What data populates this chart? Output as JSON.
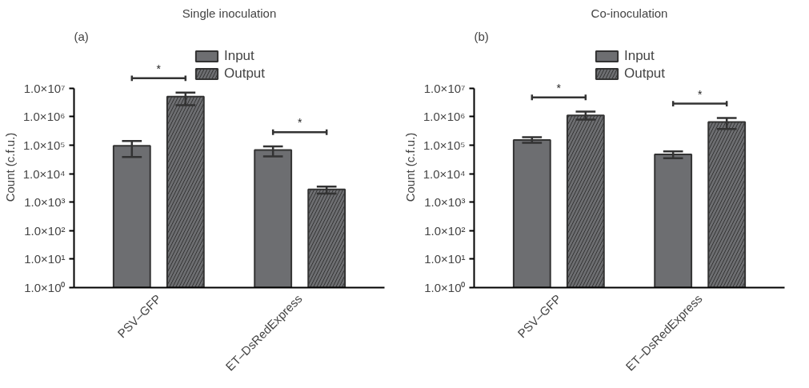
{
  "chart_data": [
    {
      "type": "bar",
      "title": "Single inoculation",
      "ylabel": "Count (c.f.u.)",
      "categories": [
        "PSV–GFP",
        "ET–DsRedExpress"
      ],
      "log": true,
      "legend": "top",
      "grid": false,
      "series": [
        {
          "name": "Input",
          "color": "#6d6e71",
          "values": [
            95000,
            67000
          ],
          "errors": [
            [
              38000,
              140000
            ],
            [
              40000,
              90000
            ]
          ]
        },
        {
          "name": "Output",
          "color": "#6d6e71",
          "values": [
            5000000,
            2800
          ],
          "errors": [
            [
              2500000,
              7000000
            ],
            [
              2000,
              3500
            ]
          ]
        }
      ],
      "ylim": [
        1,
        10000000
      ],
      "yticks": [
        {
          "value": 1,
          "label": "1.0×10⁰"
        },
        {
          "value": 10,
          "label": "1.0×10¹"
        },
        {
          "value": 100,
          "label": "1.0×10²"
        },
        {
          "value": 1000,
          "label": "1.0×10³"
        },
        {
          "value": 10000,
          "label": "1.0×10⁴"
        },
        {
          "value": 100000,
          "label": "1.0×10⁵"
        },
        {
          "value": 1000000,
          "label": "1.0×10⁶"
        },
        {
          "value": 10000000,
          "label": "1.0×10⁷"
        }
      ],
      "annotations": [
        "(a)",
        "*",
        "*"
      ]
    },
    {
      "type": "bar",
      "title": "Co-inoculation",
      "ylabel": "Count (c.f.u.)",
      "categories": [
        "PSV–GFP",
        "ET–DsRedExpress"
      ],
      "log": true,
      "legend": "top",
      "grid": false,
      "series": [
        {
          "name": "Input",
          "color": "#6d6e71",
          "values": [
            150000,
            47000
          ],
          "errors": [
            [
              120000,
              190000
            ],
            [
              35000,
              60000
            ]
          ]
        },
        {
          "name": "Output",
          "color": "#6d6e71",
          "values": [
            1100000,
            650000
          ],
          "errors": [
            [
              780000,
              1500000
            ],
            [
              370000,
              900000
            ]
          ]
        }
      ],
      "ylim": [
        1,
        10000000
      ],
      "yticks": [
        {
          "value": 1,
          "label": "1.0×10⁰"
        },
        {
          "value": 10,
          "label": "1.0×10¹"
        },
        {
          "value": 100,
          "label": "1.0×10²"
        },
        {
          "value": 1000,
          "label": "1.0×10³"
        },
        {
          "value": 10000,
          "label": "1.0×10⁴"
        },
        {
          "value": 100000,
          "label": "1.0×10⁵"
        },
        {
          "value": 1000000,
          "label": "1.0×10⁶"
        },
        {
          "value": 10000000,
          "label": "1.0×10⁷"
        }
      ],
      "annotations": [
        "(b)",
        "*",
        "*"
      ]
    }
  ]
}
